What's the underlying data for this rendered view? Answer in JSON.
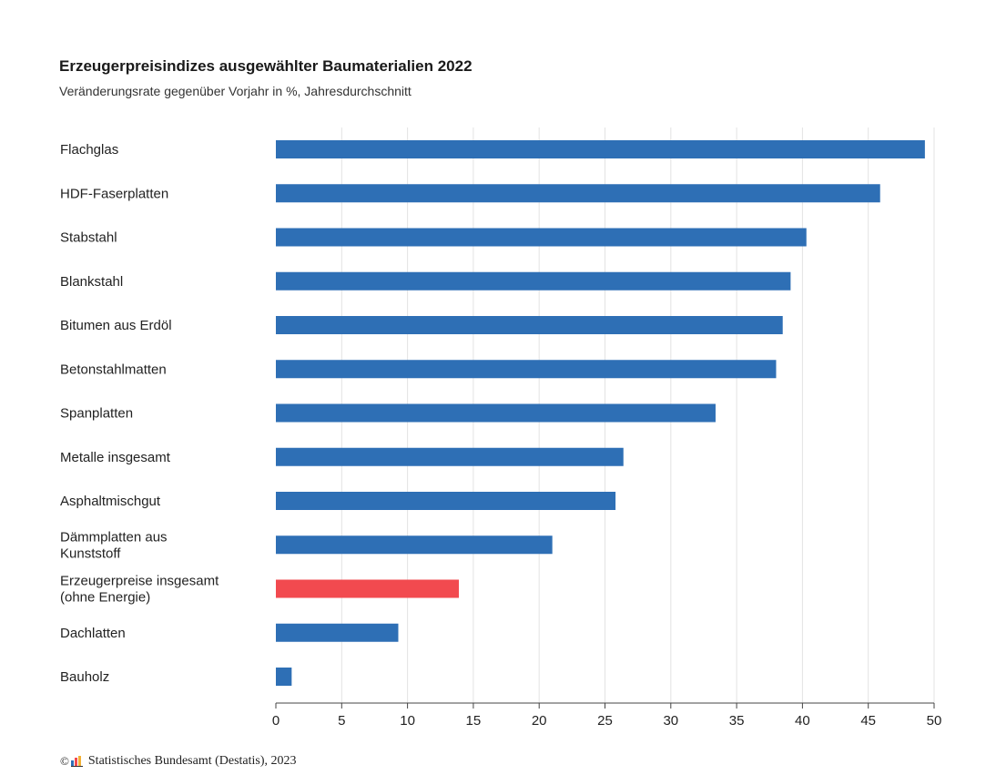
{
  "chart_data": {
    "type": "bar",
    "orientation": "horizontal",
    "title": "Erzeugerpreisindizes ausgewählter Baumaterialien 2022",
    "subtitle": "Veränderungsrate gegenüber Vorjahr in %, Jahresdurchschnitt",
    "categories": [
      "Flachglas",
      "HDF-Faserplatten",
      "Stabstahl",
      "Blankstahl",
      "Bitumen aus Erdöl",
      "Betonstahlmatten",
      "Spanplatten",
      "Metalle insgesamt",
      "Asphaltmischgut",
      "Dämmplatten aus Kunststoff",
      "Erzeugerpreise insgesamt (ohne Energie)",
      "Dachlatten",
      "Bauholz"
    ],
    "category_lines": [
      [
        "Flachglas"
      ],
      [
        "HDF-Faserplatten"
      ],
      [
        "Stabstahl"
      ],
      [
        "Blankstahl"
      ],
      [
        "Bitumen aus Erdöl"
      ],
      [
        "Betonstahlmatten"
      ],
      [
        "Spanplatten"
      ],
      [
        "Metalle insgesamt"
      ],
      [
        "Asphaltmischgut"
      ],
      [
        "Dämmplatten aus",
        "Kunststoff"
      ],
      [
        "Erzeugerpreise insgesamt",
        "(ohne Energie)"
      ],
      [
        "Dachlatten"
      ],
      [
        "Bauholz"
      ]
    ],
    "values": [
      49.3,
      45.9,
      40.3,
      39.1,
      38.5,
      38.0,
      33.4,
      26.4,
      25.8,
      21.0,
      13.9,
      9.3,
      1.2
    ],
    "highlight_index": 10,
    "colors": {
      "bar": "#2e6fb5",
      "highlight": "#f24a4f",
      "grid": "#e3e3e3",
      "axis": "#444444"
    },
    "xlim": [
      0,
      50
    ],
    "xticks": [
      0,
      5,
      10,
      15,
      20,
      25,
      30,
      35,
      40,
      45,
      50
    ],
    "xlabel": "",
    "ylabel": "",
    "grid": "vertical",
    "legend": "none"
  },
  "footer": {
    "copyright": "©",
    "source": "Statistisches Bundesamt (Destatis), 2023",
    "logo_icon": "destatis-logo-icon"
  }
}
